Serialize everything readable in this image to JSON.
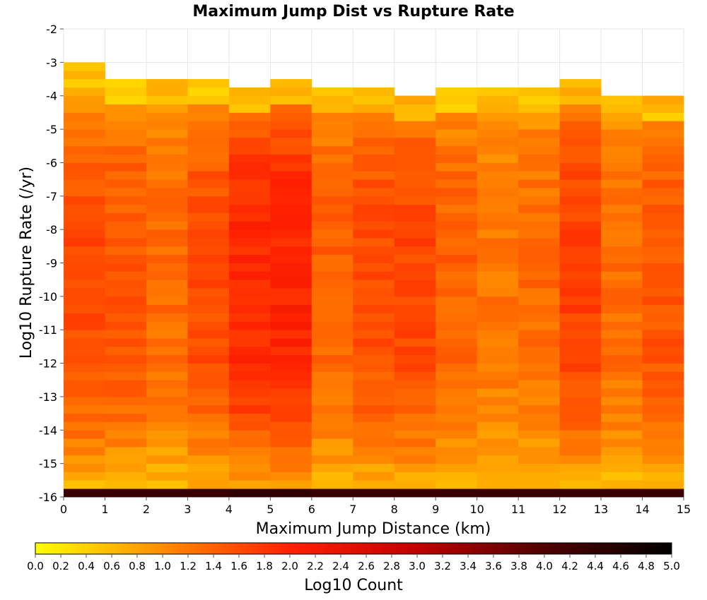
{
  "chart_data": {
    "type": "heatmap",
    "title": "Maximum Jump Dist vs Rupture Rate",
    "xlabel": "Maximum Jump Distance (km)",
    "ylabel": "Log10 Rupture Rate (/yr)",
    "xlim": [
      0,
      15
    ],
    "ylim": [
      -16,
      -2
    ],
    "x_ticks": [
      "0",
      "1",
      "2",
      "3",
      "4",
      "5",
      "6",
      "7",
      "8",
      "9",
      "10",
      "11",
      "12",
      "13",
      "14",
      "15"
    ],
    "y_ticks": [
      "-2",
      "-3",
      "-4",
      "-5",
      "-6",
      "-7",
      "-8",
      "-9",
      "-10",
      "-11",
      "-12",
      "-13",
      "-14",
      "-15",
      "-16"
    ],
    "x_bin_width_km": 1,
    "y_bin_height": 0.25,
    "grid": true,
    "colorbar": {
      "label": "Log10 Count",
      "range": [
        0,
        5
      ],
      "ticks": [
        "0.0",
        "0.2",
        "0.4",
        "0.6",
        "0.8",
        "1.0",
        "1.2",
        "1.4",
        "1.6",
        "1.8",
        "2.0",
        "2.2",
        "2.4",
        "2.6",
        "2.8",
        "3.0",
        "3.2",
        "3.4",
        "3.6",
        "3.8",
        "4.0",
        "4.2",
        "4.4",
        "4.6",
        "4.8",
        "5.0"
      ],
      "colors": [
        "#ffff00",
        "#ff8c00",
        "#ff2000",
        "#c00000",
        "#500000",
        "#000000"
      ]
    },
    "columns": [
      {
        "x_bin": [
          0,
          1
        ],
        "top": -3.0,
        "core": 1.6,
        "bottom_edge": 4.3
      },
      {
        "x_bin": [
          1,
          2
        ],
        "top": -3.5,
        "core": 1.5,
        "bottom_edge": 4.3
      },
      {
        "x_bin": [
          2,
          3
        ],
        "top": -3.5,
        "core": 1.3,
        "bottom_edge": 4.3
      },
      {
        "x_bin": [
          3,
          4
        ],
        "top": -3.5,
        "core": 1.6,
        "bottom_edge": 4.3
      },
      {
        "x_bin": [
          4,
          5
        ],
        "top": -3.75,
        "core": 1.95,
        "bottom_edge": 4.4
      },
      {
        "x_bin": [
          5,
          6
        ],
        "top": -3.5,
        "core": 2.0,
        "bottom_edge": 4.4
      },
      {
        "x_bin": [
          6,
          7
        ],
        "top": -3.75,
        "core": 1.4,
        "bottom_edge": 4.3
      },
      {
        "x_bin": [
          7,
          8
        ],
        "top": -3.75,
        "core": 1.6,
        "bottom_edge": 4.3
      },
      {
        "x_bin": [
          8,
          9
        ],
        "top": -4.0,
        "core": 1.65,
        "bottom_edge": 4.3
      },
      {
        "x_bin": [
          9,
          10
        ],
        "top": -3.75,
        "core": 1.4,
        "bottom_edge": 4.3
      },
      {
        "x_bin": [
          10,
          11
        ],
        "top": -3.75,
        "core": 1.2,
        "bottom_edge": 4.3
      },
      {
        "x_bin": [
          11,
          12
        ],
        "top": -3.75,
        "core": 1.3,
        "bottom_edge": 4.3
      },
      {
        "x_bin": [
          12,
          13
        ],
        "top": -3.5,
        "core": 1.7,
        "bottom_edge": 4.3
      },
      {
        "x_bin": [
          13,
          14
        ],
        "top": -4.0,
        "core": 1.3,
        "bottom_edge": 4.3
      },
      {
        "x_bin": [
          14,
          15
        ],
        "top": -4.0,
        "core": 1.5,
        "bottom_edge": 4.3
      }
    ]
  }
}
